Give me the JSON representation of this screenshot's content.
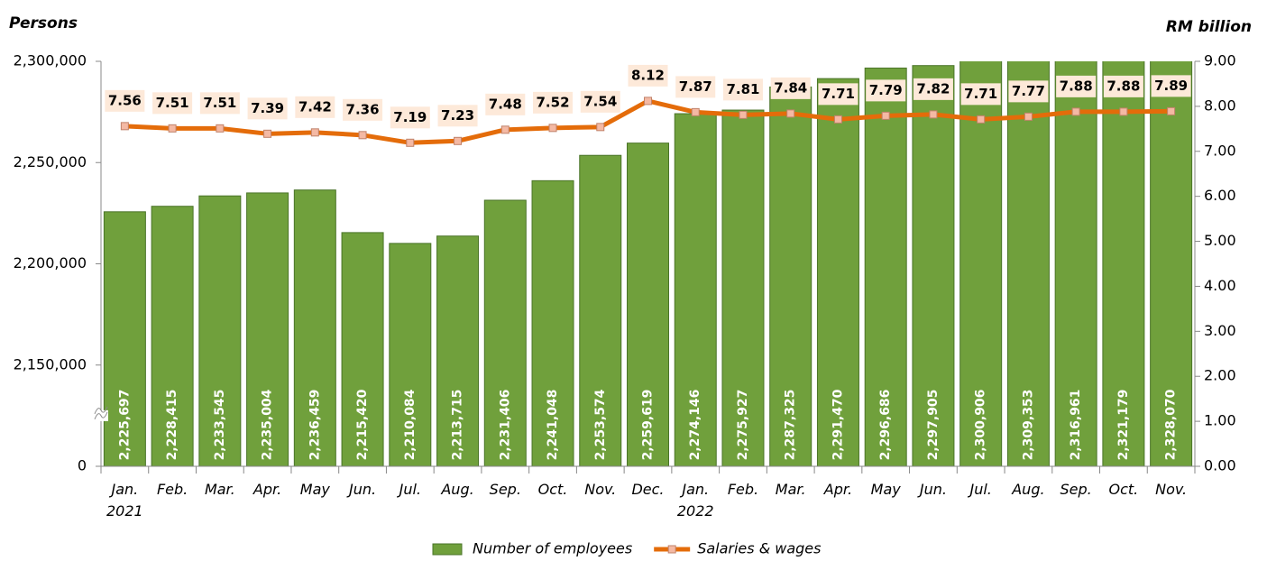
{
  "chart_data": {
    "type": "bar",
    "y_label": "Persons",
    "y2_label": "RM billion",
    "categories": [
      "Jan.\n2021",
      "Feb.",
      "Mar.",
      "Apr.",
      "May",
      "Jun.",
      "Jul.",
      "Aug.",
      "Sep.",
      "Oct.",
      "Nov.",
      "Dec.",
      "Jan.\n2022",
      "Feb.",
      "Mar.",
      "Apr.",
      "May",
      "Jun.",
      "Jul.",
      "Aug.",
      "Sep.",
      "Oct.",
      "Nov."
    ],
    "series": [
      {
        "name": "Number of employees",
        "type": "bar",
        "color": "#70a03c",
        "values": [
          2225697,
          2228415,
          2233545,
          2235004,
          2236459,
          2215420,
          2210084,
          2213715,
          2231406,
          2241048,
          2253574,
          2259619,
          2274146,
          2275927,
          2287325,
          2291470,
          2296686,
          2297905,
          2300906,
          2309353,
          2316961,
          2321179,
          2328070
        ],
        "value_labels": [
          "2,225,697",
          "2,228,415",
          "2,233,545",
          "2,235,004",
          "2,236,459",
          "2,215,420",
          "2,210,084",
          "2,213,715",
          "2,231,406",
          "2,241,048",
          "2,253,574",
          "2,259,619",
          "2,274,146",
          "2,275,927",
          "2,287,325",
          "2,291,470",
          "2,296,686",
          "2,297,905",
          "2,300,906",
          "2,309,353",
          "2,316,961",
          "2,321,179",
          "2,328,070"
        ]
      },
      {
        "name": "Salaries & wages",
        "type": "line",
        "color": "#e46c0a",
        "axis": "y2",
        "values": [
          7.56,
          7.51,
          7.51,
          7.39,
          7.42,
          7.36,
          7.19,
          7.23,
          7.48,
          7.52,
          7.54,
          8.12,
          7.87,
          7.81,
          7.84,
          7.71,
          7.79,
          7.82,
          7.71,
          7.77,
          7.88,
          7.88,
          7.89
        ]
      }
    ],
    "ylim": [
      0,
      2300000
    ],
    "ybreak": [
      0,
      2150000
    ],
    "yticks": [
      {
        "value": 0,
        "label": "0"
      },
      {
        "value": 2150000,
        "label": "2,150,000"
      },
      {
        "value": 2200000,
        "label": "2,200,000"
      },
      {
        "value": 2250000,
        "label": "2,250,000"
      },
      {
        "value": 2300000,
        "label": "2,300,000"
      }
    ],
    "y2lim": [
      0,
      9
    ],
    "y2ticks": [
      {
        "value": 0,
        "label": "0.00"
      },
      {
        "value": 1,
        "label": "1.00"
      },
      {
        "value": 2,
        "label": "2.00"
      },
      {
        "value": 3,
        "label": "3.00"
      },
      {
        "value": 4,
        "label": "4.00"
      },
      {
        "value": 5,
        "label": "5.00"
      },
      {
        "value": 6,
        "label": "6.00"
      },
      {
        "value": 7,
        "label": "7.00"
      },
      {
        "value": 8,
        "label": "8.00"
      },
      {
        "value": 9,
        "label": "9.00"
      }
    ],
    "legend": "bottom"
  }
}
